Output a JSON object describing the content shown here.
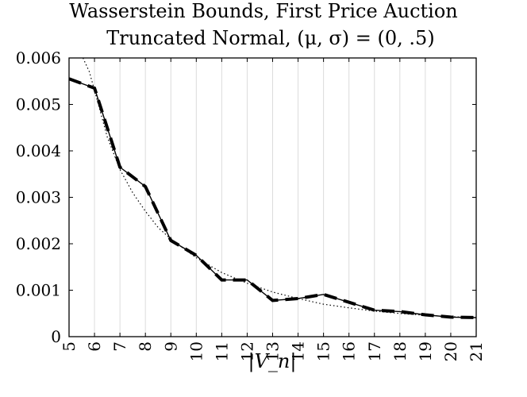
{
  "chart_data": {
    "type": "line",
    "title": "Wasserstein Bounds, First Price Auction",
    "subtitle": "Truncated Normal, (μ, σ) = (0, .5)",
    "xlabel": "|V_n|",
    "ylabel": "",
    "xlim": [
      5,
      21
    ],
    "ylim": [
      0,
      0.006
    ],
    "grid": "vertical",
    "x": [
      5,
      6,
      7,
      8,
      9,
      10,
      11,
      12,
      13,
      14,
      15,
      16,
      17,
      18,
      19,
      20,
      21
    ],
    "x_tick_labels": [
      "5",
      "6",
      "7",
      "8",
      "9",
      "10",
      "11",
      "12",
      "13",
      "14",
      "15",
      "16",
      "17",
      "18",
      "19",
      "20",
      "21"
    ],
    "y_tick_labels": [
      "0",
      "0.001",
      "0.002",
      "0.003",
      "0.004",
      "0.005",
      "0.006"
    ],
    "series": [
      {
        "style": "solid",
        "values": [
          0.00555,
          0.00535,
          0.00365,
          0.00323,
          0.00207,
          0.00175,
          0.00122,
          0.00122,
          0.00078,
          0.00082,
          0.00091,
          0.00074,
          0.00057,
          0.00054,
          0.00047,
          0.00042,
          0.00041
        ]
      },
      {
        "style": "dashed-thick",
        "values": [
          0.00555,
          0.00535,
          0.00365,
          0.00323,
          0.00207,
          0.00175,
          0.00122,
          0.00122,
          0.00078,
          0.00082,
          0.00091,
          0.00074,
          0.00057,
          0.00054,
          0.00047,
          0.00042,
          0.00041
        ]
      },
      {
        "style": "dotted",
        "x": [
          5.55,
          5.8,
          6,
          6.5,
          7,
          7.5,
          8,
          8.5,
          9,
          10,
          11,
          12,
          13,
          14,
          15,
          16,
          17,
          18,
          19,
          20,
          21
        ],
        "values": [
          0.006,
          0.0057,
          0.0053,
          0.0043,
          0.0036,
          0.0031,
          0.0027,
          0.00235,
          0.0021,
          0.0017,
          0.00138,
          0.00115,
          0.00096,
          0.00082,
          0.0007,
          0.00062,
          0.00055,
          0.0005,
          0.00046,
          0.00043,
          0.00041
        ]
      }
    ]
  }
}
